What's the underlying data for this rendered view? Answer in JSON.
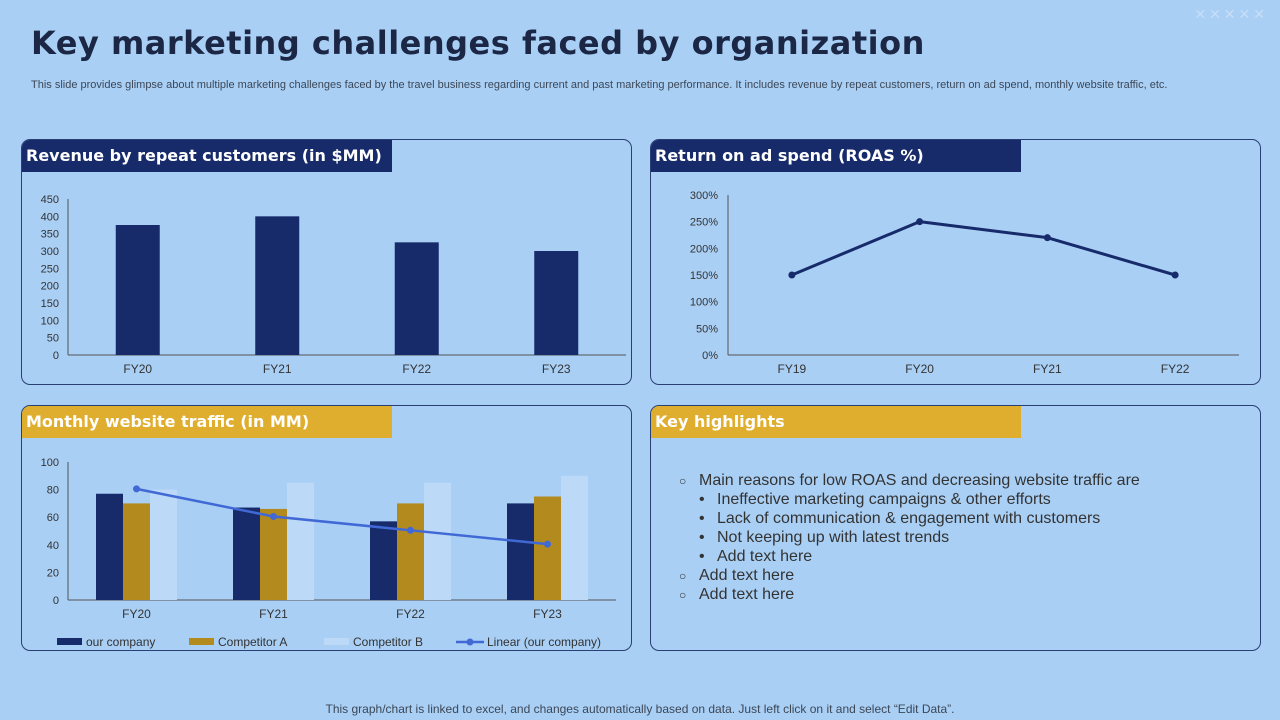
{
  "page": {
    "title": "Key marketing challenges faced by organization",
    "subtitle": "This slide provides glimpse about multiple marketing challenges faced by the travel business regarding current and past marketing performance. It includes revenue by repeat customers, return on ad spend, monthly website traffic, etc.",
    "footnote": "This graph/chart is linked to excel,  and changes automatically based on data. Just left click on it and select “Edit Data”."
  },
  "panels": {
    "revenue_title": "Revenue by repeat customers (in $MM)",
    "roas_title": "Return on ad spend (ROAS %)",
    "traffic_title": "Monthly website traffic (in MM)",
    "highlights_title": "Key highlights"
  },
  "colors": {
    "navy": "#172b6b",
    "gold": "#b38a1e",
    "gold_header": "#e0ae2e",
    "competitor_b": "#bcd9f7",
    "trend_line": "#4169d6",
    "background": "#a9cff5"
  },
  "highlights": {
    "items": [
      {
        "text": "Main reasons for low ROAS and decreasing website traffic are",
        "sub": [
          "Ineffective  marketing campaigns & other efforts",
          "Lack of communication  & engagement with customers",
          "Not keeping up with latest trends",
          "Add text here"
        ]
      },
      {
        "text": "Add text here",
        "sub": []
      },
      {
        "text": "Add text here",
        "sub": []
      }
    ]
  },
  "chart_data": [
    {
      "type": "bar",
      "categories": [
        "FY20",
        "FY21",
        "FY22",
        "FY23"
      ],
      "values": [
        375,
        400,
        325,
        300
      ],
      "ylim": [
        0,
        450
      ],
      "yticks": [
        0,
        50,
        100,
        150,
        200,
        250,
        300,
        350,
        400,
        450
      ],
      "grid": false,
      "color": "#172b6b"
    },
    {
      "type": "line",
      "categories": [
        "FY19",
        "FY20",
        "FY21",
        "FY22"
      ],
      "values": [
        150,
        250,
        220,
        150
      ],
      "ylim": [
        0,
        300
      ],
      "yticks": [
        "0%",
        "50%",
        "100%",
        "150%",
        "200%",
        "250%",
        "300%"
      ],
      "grid": false,
      "color": "#172b6b"
    },
    {
      "type": "bar",
      "categories": [
        "FY20",
        "FY21",
        "FY22",
        "FY23"
      ],
      "series": [
        {
          "name": "our company",
          "values": [
            77,
            67,
            57,
            70
          ],
          "color": "#172b6b"
        },
        {
          "name": "Competitor A",
          "values": [
            70,
            66,
            70,
            75
          ],
          "color": "#b38a1e"
        },
        {
          "name": "Competitor B",
          "values": [
            80,
            85,
            85,
            90
          ],
          "color": "#bcd9f7"
        }
      ],
      "trendline": {
        "name": "Linear (our company)",
        "values": [
          80.5,
          60.5,
          50.5,
          40.5
        ],
        "color": "#4169d6"
      },
      "ylim": [
        0,
        100
      ],
      "yticks": [
        0,
        20,
        40,
        60,
        80,
        100
      ],
      "grid": false,
      "legend": "bottom"
    }
  ]
}
